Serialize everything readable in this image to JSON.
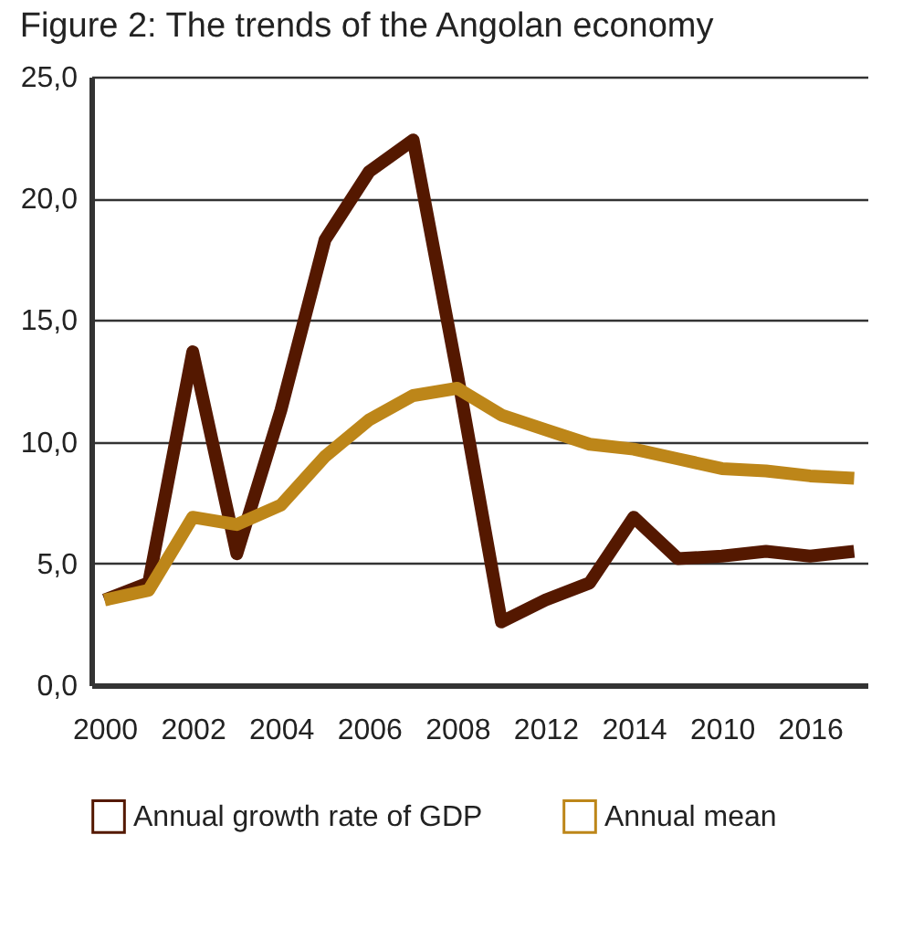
{
  "chart_data": {
    "type": "line",
    "title": "Figure 2: The trends of the Angolan economy",
    "categories": [
      "2000",
      null,
      "2002",
      null,
      "2004",
      null,
      "2006",
      null,
      "2008",
      null,
      "2012",
      null,
      "2014",
      null,
      "2010",
      null,
      "2016",
      null
    ],
    "series": [
      {
        "name": "Annual growth rate of GDP",
        "color": "#541800",
        "values": [
          3.5,
          4.2,
          13.7,
          5.4,
          11.3,
          18.3,
          21.1,
          22.4,
          12.8,
          2.6,
          3.5,
          4.2,
          6.9,
          5.2,
          5.3,
          5.5,
          5.3,
          5.5
        ]
      },
      {
        "name": "Annual mean",
        "color": "#bd8619",
        "values": [
          3.5,
          3.9,
          6.9,
          6.6,
          7.4,
          9.4,
          10.9,
          11.9,
          12.2,
          11.1,
          10.5,
          9.9,
          9.7,
          9.3,
          8.9,
          8.8,
          8.6,
          8.5
        ]
      }
    ],
    "ylim": [
      0,
      25
    ],
    "yticks": [
      {
        "value": 0,
        "label": "0,0"
      },
      {
        "value": 5,
        "label": "5,0"
      },
      {
        "value": 10,
        "label": "10,0"
      },
      {
        "value": 15,
        "label": "15,0"
      },
      {
        "value": 20,
        "label": "20,0"
      },
      {
        "value": 25,
        "label": "25,0"
      }
    ],
    "grid": "y",
    "legend": "bottom",
    "marker": "none",
    "line_style": "solid"
  }
}
